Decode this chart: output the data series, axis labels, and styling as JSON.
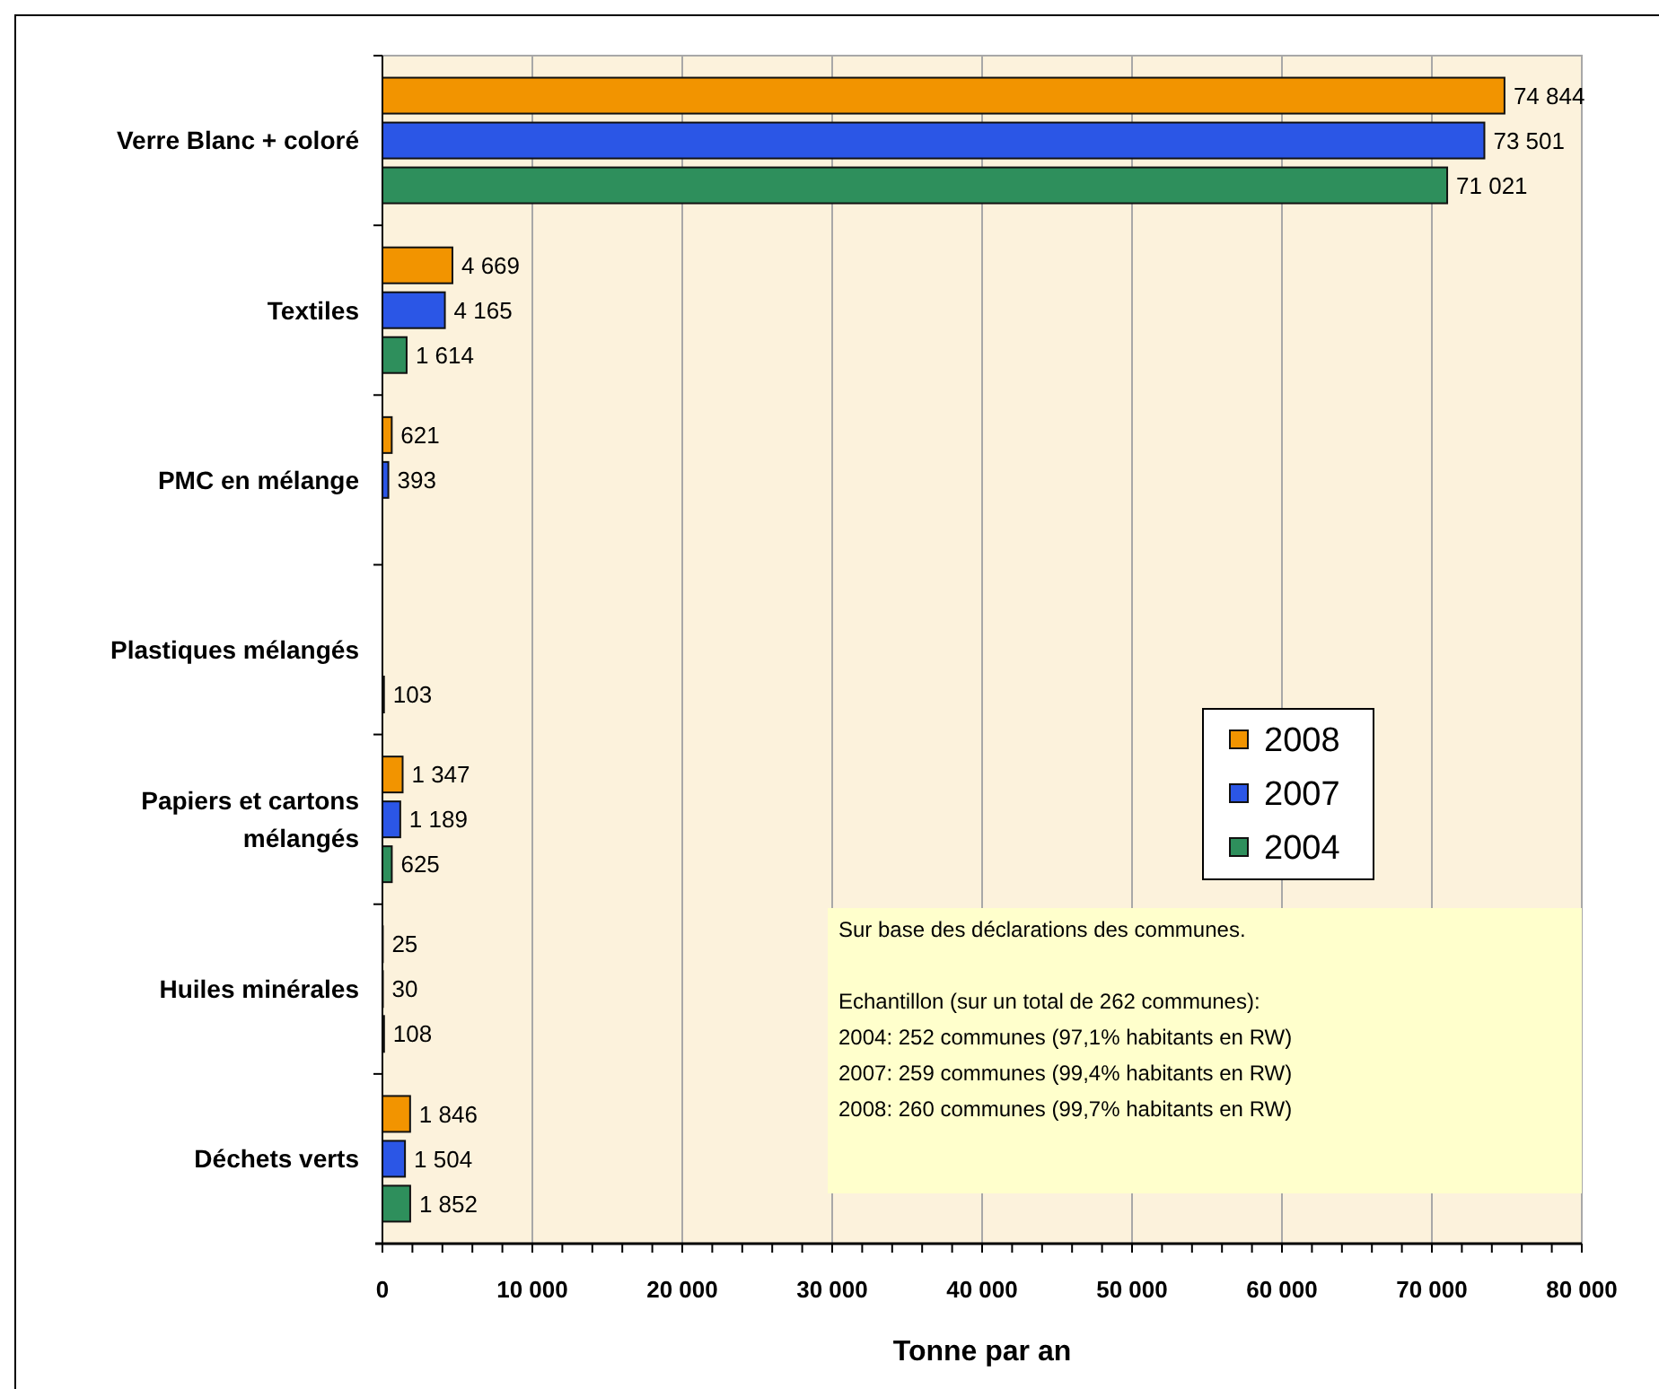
{
  "chart_data": {
    "type": "bar",
    "orientation": "horizontal",
    "xlabel": "Tonne par an",
    "categories": [
      "Verre Blanc + coloré",
      "Textiles",
      "PMC en mélange",
      "Plastiques mélangés",
      "Papiers et cartons mélangés",
      "Huiles minérales",
      "Déchets verts"
    ],
    "series": [
      {
        "name": "2008",
        "color": "#f29400",
        "values": [
          74844,
          4669,
          621,
          null,
          1347,
          25,
          1846
        ],
        "value_labels": [
          "74 844",
          "4 669",
          "621",
          null,
          "1 347",
          "25",
          "1 846"
        ]
      },
      {
        "name": "2007",
        "color": "#2b56e6",
        "values": [
          73501,
          4165,
          393,
          null,
          1189,
          30,
          1504
        ],
        "value_labels": [
          "73 501",
          "4 165",
          "393",
          null,
          "1 189",
          "30",
          "1 504"
        ]
      },
      {
        "name": "2004",
        "color": "#2e8f5c",
        "values": [
          71021,
          1614,
          null,
          103,
          625,
          108,
          1852
        ],
        "value_labels": [
          "71 021",
          "1 614",
          null,
          "103",
          "625",
          "108",
          "1 852"
        ]
      }
    ],
    "xlim": [
      0,
      80000
    ],
    "xticks": [
      0,
      {
        "value": 2000,
        "label": null
      },
      {
        "value": 4000,
        "label": null
      },
      {
        "value": 6000,
        "label": null
      },
      {
        "value": 8000,
        "label": null
      },
      {
        "value": 10000,
        "label": "10 000"
      },
      {
        "value": 12000,
        "label": null
      },
      {
        "value": 14000,
        "label": null
      },
      {
        "value": 16000,
        "label": null
      },
      {
        "value": 18000,
        "label": null
      },
      {
        "value": 20000,
        "label": "20 000"
      },
      {
        "value": 22000,
        "label": null
      },
      {
        "value": 24000,
        "label": null
      },
      {
        "value": 26000,
        "label": null
      },
      {
        "value": 28000,
        "label": null
      },
      {
        "value": 30000,
        "label": "30 000"
      },
      {
        "value": 32000,
        "label": null
      },
      {
        "value": 34000,
        "label": null
      },
      {
        "value": 36000,
        "label": null
      },
      {
        "value": 38000,
        "label": null
      },
      {
        "value": 40000,
        "label": "40 000"
      },
      {
        "value": 42000,
        "label": null
      },
      {
        "value": 44000,
        "label": null
      },
      {
        "value": 46000,
        "label": null
      },
      {
        "value": 48000,
        "label": null
      },
      {
        "value": 50000,
        "label": "50 000"
      },
      {
        "value": 52000,
        "label": null
      },
      {
        "value": 54000,
        "label": null
      },
      {
        "value": 56000,
        "label": null
      },
      {
        "value": 58000,
        "label": null
      },
      {
        "value": 60000,
        "label": "60 000"
      },
      {
        "value": 62000,
        "label": null
      },
      {
        "value": 64000,
        "label": null
      },
      {
        "value": 66000,
        "label": null
      },
      {
        "value": 68000,
        "label": null
      },
      {
        "value": 70000,
        "label": "70 000"
      },
      {
        "value": 72000,
        "label": null
      },
      {
        "value": 74000,
        "label": null
      },
      {
        "value": 76000,
        "label": null
      },
      {
        "value": 78000,
        "label": null
      },
      {
        "value": 80000,
        "label": "80 000"
      }
    ],
    "grid": "x",
    "legend": "right",
    "annotations": [
      "Sur base des déclarations des communes.",
      "Echantillon (sur un total de 262 communes):",
      "2004: 252 communes (97,1% habitants en RW)",
      "2007: 259 communes (99,4% habitants en RW)",
      "2008: 260 communes (99,7% habitants en RW)"
    ]
  }
}
